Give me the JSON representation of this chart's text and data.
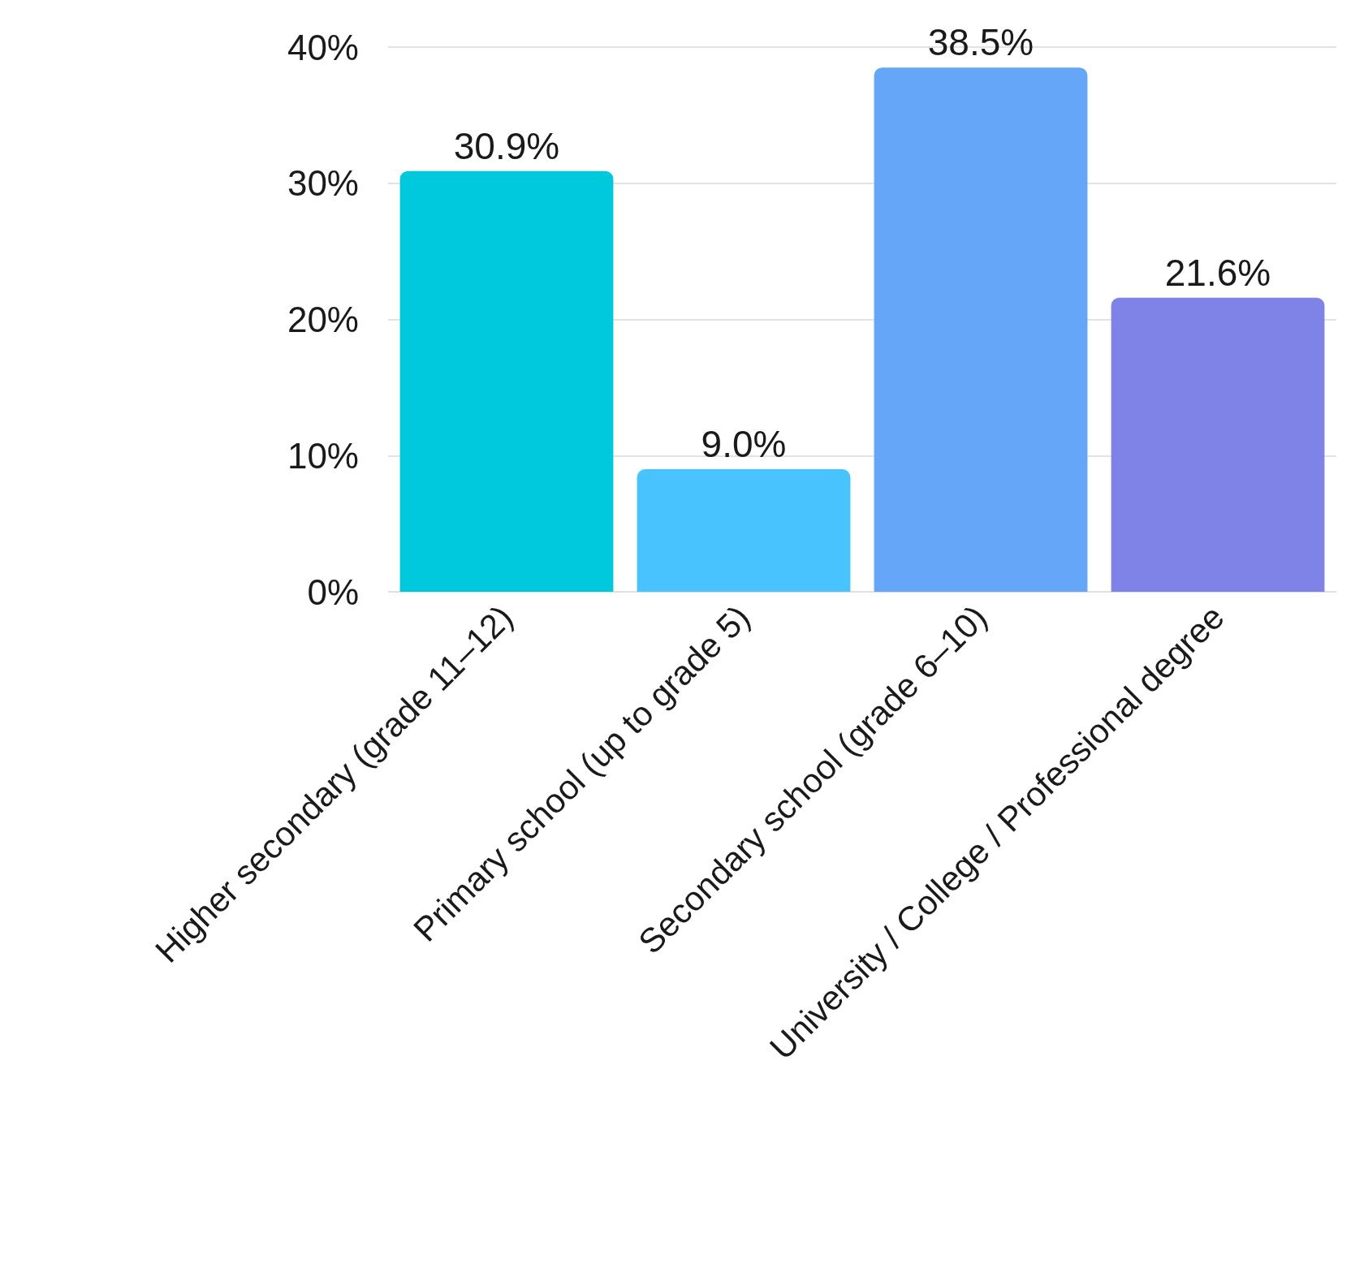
{
  "chart_data": {
    "type": "bar",
    "categories": [
      "Higher secondary (grade 11–12)",
      "Primary school (up to grade 5)",
      "Secondary school (grade 6–10)",
      "University / College / Professional degree"
    ],
    "values": [
      30.9,
      9.0,
      38.5,
      21.6
    ],
    "colors": [
      "#00c9dd",
      "#48c3fd",
      "#65a6f8",
      "#7f82e6"
    ],
    "value_labels": [
      "30.9%",
      "9.0%",
      "38.5%",
      "21.6%"
    ],
    "ylim": [
      0,
      40
    ],
    "yticks": [
      {
        "value": 0,
        "label": "0%"
      },
      {
        "value": 10,
        "label": "10%"
      },
      {
        "value": 20,
        "label": "20%"
      },
      {
        "value": 30,
        "label": "30%"
      },
      {
        "value": 40,
        "label": "40%"
      }
    ],
    "grid": "y"
  }
}
